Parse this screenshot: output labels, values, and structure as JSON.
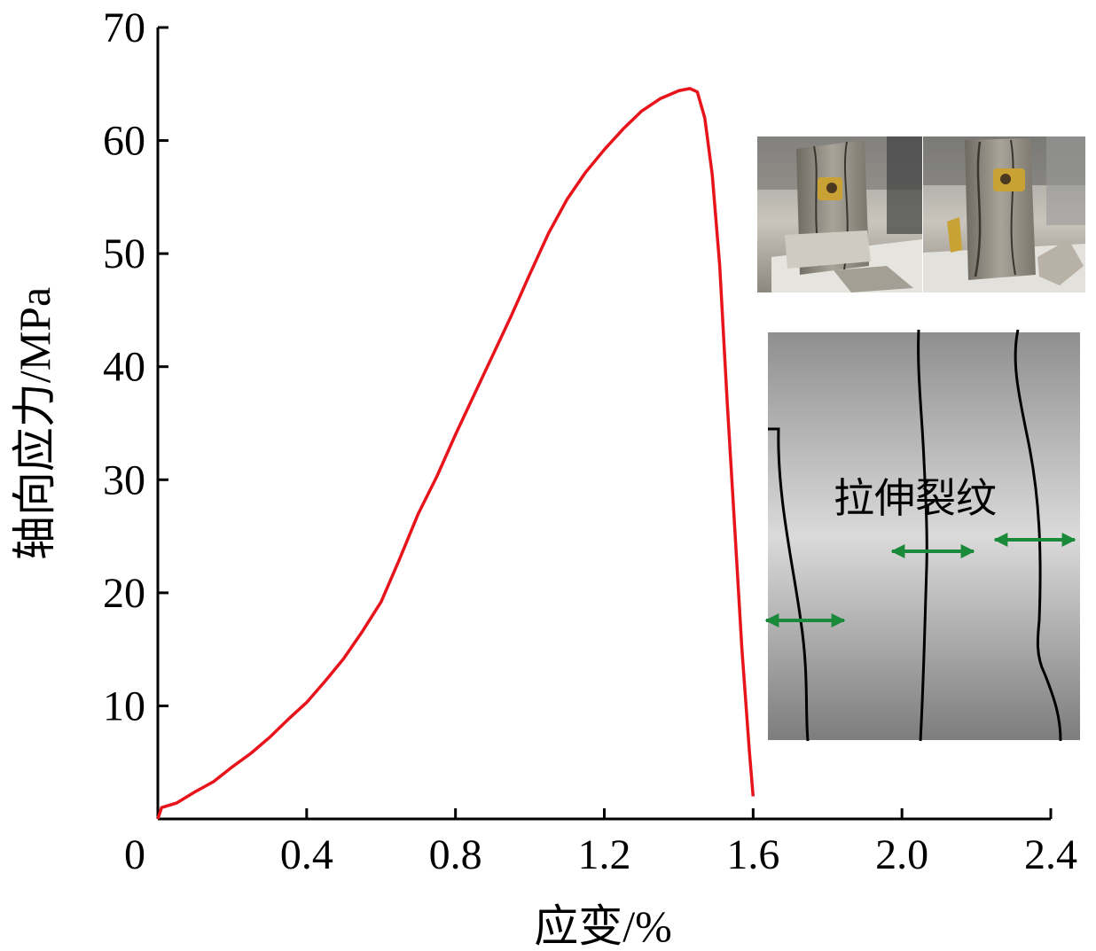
{
  "chart_data": {
    "type": "line",
    "xlabel": "应变/%",
    "ylabel": "轴向应力/MPa",
    "xlim": [
      0,
      2.4
    ],
    "ylim": [
      0,
      70
    ],
    "x_ticks": [
      "0",
      "0.4",
      "0.8",
      "1.2",
      "1.6",
      "2.0",
      "2.4"
    ],
    "x_tick_values": [
      0,
      0.4,
      0.8,
      1.2,
      1.6,
      2.0,
      2.4
    ],
    "y_ticks": [
      "10",
      "20",
      "30",
      "40",
      "50",
      "60",
      "70"
    ],
    "y_tick_values": [
      10,
      20,
      30,
      40,
      50,
      60,
      70
    ],
    "grid": false,
    "series": [
      {
        "color": "#e8141b",
        "x": [
          0.0,
          0.01,
          0.05,
          0.1,
          0.15,
          0.2,
          0.25,
          0.3,
          0.35,
          0.4,
          0.45,
          0.5,
          0.55,
          0.6,
          0.65,
          0.7,
          0.75,
          0.8,
          0.85,
          0.9,
          0.95,
          1.0,
          1.05,
          1.1,
          1.15,
          1.2,
          1.25,
          1.3,
          1.35,
          1.4,
          1.43,
          1.45,
          1.47,
          1.49,
          1.51,
          1.53,
          1.55,
          1.57,
          1.59,
          1.6
        ],
        "y": [
          0.0,
          1.0,
          1.4,
          2.4,
          3.3,
          4.6,
          5.8,
          7.2,
          8.8,
          10.3,
          12.2,
          14.2,
          16.6,
          19.2,
          23.0,
          27.0,
          30.3,
          34.0,
          37.5,
          41.0,
          44.5,
          48.2,
          51.8,
          54.8,
          57.2,
          59.2,
          61.0,
          62.6,
          63.7,
          64.4,
          64.6,
          64.3,
          62.0,
          57.0,
          49.0,
          37.0,
          26.0,
          15.0,
          6.0,
          2.0
        ]
      }
    ],
    "annotations": [
      {
        "text": "拉伸裂纹"
      }
    ]
  },
  "inset": {
    "annotation_label": "拉伸裂纹",
    "arrow_color": "#1a8a3a",
    "crack_color": "#000000"
  }
}
